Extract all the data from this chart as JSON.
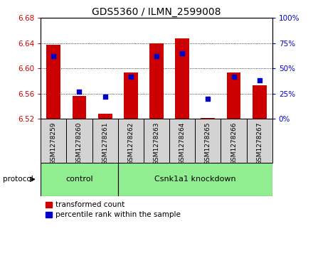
{
  "title": "GDS5360 / ILMN_2599008",
  "samples": [
    "GSM1278259",
    "GSM1278260",
    "GSM1278261",
    "GSM1278262",
    "GSM1278263",
    "GSM1278264",
    "GSM1278265",
    "GSM1278266",
    "GSM1278267"
  ],
  "transformed_count": [
    6.638,
    6.556,
    6.528,
    6.594,
    6.64,
    6.648,
    6.521,
    6.594,
    6.573
  ],
  "percentile_rank": [
    62,
    27,
    22,
    42,
    62,
    65,
    20,
    42,
    38
  ],
  "ylim_left": [
    6.52,
    6.68
  ],
  "ylim_right": [
    0,
    100
  ],
  "yticks_left": [
    6.52,
    6.56,
    6.6,
    6.64,
    6.68
  ],
  "yticks_right": [
    0,
    25,
    50,
    75,
    100
  ],
  "bar_color": "#cc0000",
  "dot_color": "#0000cc",
  "bar_bottom": 6.52,
  "control_count": 3,
  "protocol_label": "protocol",
  "group1_label": "control",
  "group2_label": "Csnk1a1 knockdown",
  "group_color": "#90ee90",
  "legend_bar_label": "transformed count",
  "legend_dot_label": "percentile rank within the sample",
  "tick_label_color_left": "#cc0000",
  "tick_label_color_right": "#0000cc",
  "sample_bg_color": "#d3d3d3",
  "title_fontsize": 10
}
